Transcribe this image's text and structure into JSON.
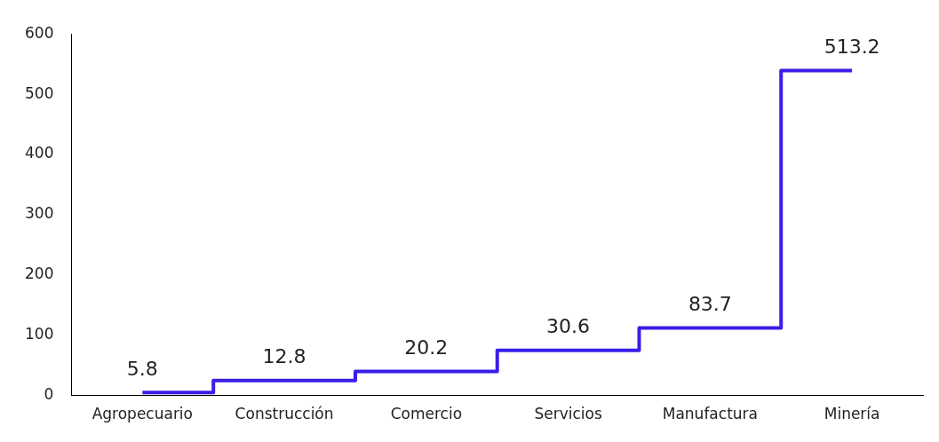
{
  "chart_data": {
    "type": "step",
    "categories": [
      "Agropecuario",
      "Construcción",
      "Comercio",
      "Servicios",
      "Manufactura",
      "Minería"
    ],
    "series": [
      {
        "color": "#3a1ee8",
        "values": [
          5,
          25,
          40,
          75,
          112,
          539
        ]
      }
    ],
    "annotations": [
      {
        "text": "5.8",
        "x": "Agropecuario",
        "y": 5
      },
      {
        "text": "12.8",
        "x": "Construcción",
        "y": 25
      },
      {
        "text": "20.2",
        "x": "Comercio",
        "y": 40
      },
      {
        "text": "30.6",
        "x": "Servicios",
        "y": 75
      },
      {
        "text": "83.7",
        "x": "Manufactura",
        "y": 112
      },
      {
        "text": "513.2",
        "x": "Minería",
        "y": 539
      }
    ],
    "ylim": [
      0,
      600
    ],
    "yticks": [
      0,
      100,
      200,
      300,
      400,
      500,
      600
    ],
    "grid": false,
    "legend": false
  }
}
